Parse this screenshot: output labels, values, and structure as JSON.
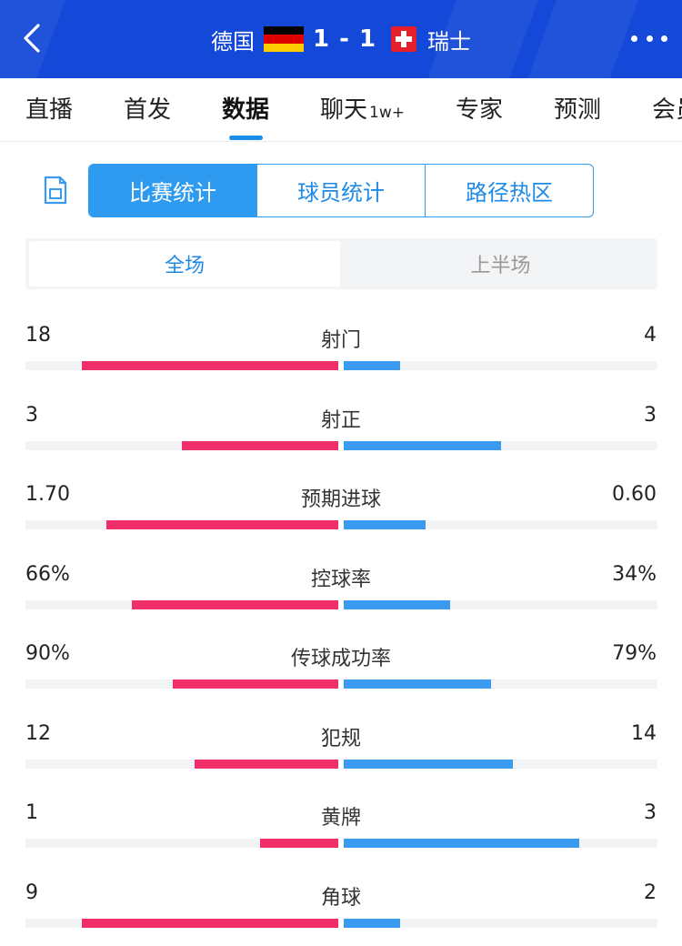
{
  "header": {
    "home_team": "德国",
    "away_team": "瑞士",
    "score": "1 - 1",
    "colors": {
      "background": "#1448d8",
      "flag_de": [
        "#000000",
        "#dd0000",
        "#ffce00"
      ],
      "flag_ch": "#e5202a"
    },
    "icons": {
      "back": "chevron-left-icon",
      "more": "more-dots-icon"
    }
  },
  "tabs": [
    {
      "label": "直播",
      "active": false
    },
    {
      "label": "首发",
      "active": false
    },
    {
      "label": "数据",
      "active": true
    },
    {
      "label": "聊天",
      "badge": "1w+",
      "active": false
    },
    {
      "label": "专家",
      "active": false
    },
    {
      "label": "预测",
      "active": false
    },
    {
      "label": "会员",
      "active": false
    }
  ],
  "segment": {
    "share_icon": "share-image-icon",
    "items": [
      {
        "label": "比赛统计",
        "active": true
      },
      {
        "label": "球员统计",
        "active": false
      },
      {
        "label": "路径热区",
        "active": false
      }
    ]
  },
  "period": {
    "items": [
      {
        "label": "全场",
        "active": true
      },
      {
        "label": "上半场",
        "active": false
      }
    ]
  },
  "stats": {
    "colors": {
      "home": "#ef2e6a",
      "away": "#3a9af0"
    },
    "rows": [
      {
        "name": "射门",
        "home": "18",
        "away": "4",
        "home_fill": 0.82,
        "away_fill": 0.18
      },
      {
        "name": "射正",
        "home": "3",
        "away": "3",
        "home_fill": 0.5,
        "away_fill": 0.5
      },
      {
        "name": "预期进球",
        "home": "1.70",
        "away": "0.60",
        "home_fill": 0.74,
        "away_fill": 0.26
      },
      {
        "name": "控球率",
        "home": "66%",
        "away": "34%",
        "home_fill": 0.66,
        "away_fill": 0.34
      },
      {
        "name": "传球成功率",
        "home": "90%",
        "away": "79%",
        "home_fill": 0.53,
        "away_fill": 0.47
      },
      {
        "name": "犯规",
        "home": "12",
        "away": "14",
        "home_fill": 0.46,
        "away_fill": 0.54
      },
      {
        "name": "黄牌",
        "home": "1",
        "away": "3",
        "home_fill": 0.25,
        "away_fill": 0.75
      },
      {
        "name": "角球",
        "home": "9",
        "away": "2",
        "home_fill": 0.82,
        "away_fill": 0.18
      }
    ]
  }
}
